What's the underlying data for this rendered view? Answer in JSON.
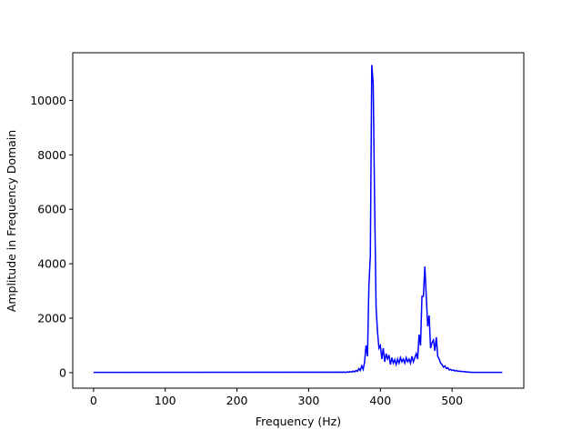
{
  "chart_data": {
    "type": "line",
    "x_label": "Frequency (Hz)",
    "y_label": "Amplitude in Frequency Domain",
    "series": [
      {
        "color": "#0000ff",
        "x": [
          0,
          350,
          352,
          354,
          356,
          358,
          360,
          362,
          364,
          366,
          368,
          370,
          372,
          374,
          376,
          378,
          380,
          382,
          384,
          386,
          388,
          390,
          392,
          394,
          396,
          398,
          400,
          402,
          404,
          406,
          408,
          410,
          412,
          414,
          416,
          418,
          420,
          422,
          424,
          426,
          428,
          430,
          432,
          434,
          436,
          438,
          440,
          442,
          444,
          446,
          448,
          450,
          452,
          454,
          456,
          458,
          460,
          462,
          464,
          466,
          468,
          470,
          472,
          474,
          476,
          478,
          480,
          482,
          484,
          486,
          488,
          490,
          492,
          494,
          496,
          498,
          500,
          502,
          504,
          506,
          508,
          510,
          512,
          514,
          516,
          518,
          520,
          522,
          524,
          526,
          528,
          530,
          570
        ],
        "values": [
          10,
          20,
          10,
          30,
          15,
          40,
          20,
          60,
          30,
          80,
          50,
          150,
          80,
          250,
          120,
          400,
          1000,
          600,
          3200,
          4300,
          11300,
          10600,
          6200,
          2400,
          1500,
          900,
          1000,
          500,
          900,
          400,
          700,
          500,
          650,
          300,
          550,
          350,
          480,
          300,
          500,
          350,
          550,
          400,
          500,
          350,
          550,
          400,
          500,
          350,
          600,
          400,
          550,
          700,
          500,
          1400,
          1000,
          2800,
          2800,
          3900,
          2800,
          1700,
          2100,
          900,
          1100,
          1200,
          800,
          1300,
          600,
          500,
          350,
          300,
          200,
          250,
          150,
          180,
          100,
          120,
          80,
          100,
          60,
          80,
          50,
          60,
          40,
          50,
          30,
          40,
          20,
          30,
          15,
          20,
          10,
          10,
          10
        ]
      }
    ],
    "xlim": [
      -29,
      600
    ],
    "ylim": [
      -570,
      11750
    ],
    "xticks": [
      0,
      100,
      200,
      300,
      400,
      500
    ],
    "yticks": [
      0,
      2000,
      4000,
      6000,
      8000,
      10000
    ]
  }
}
